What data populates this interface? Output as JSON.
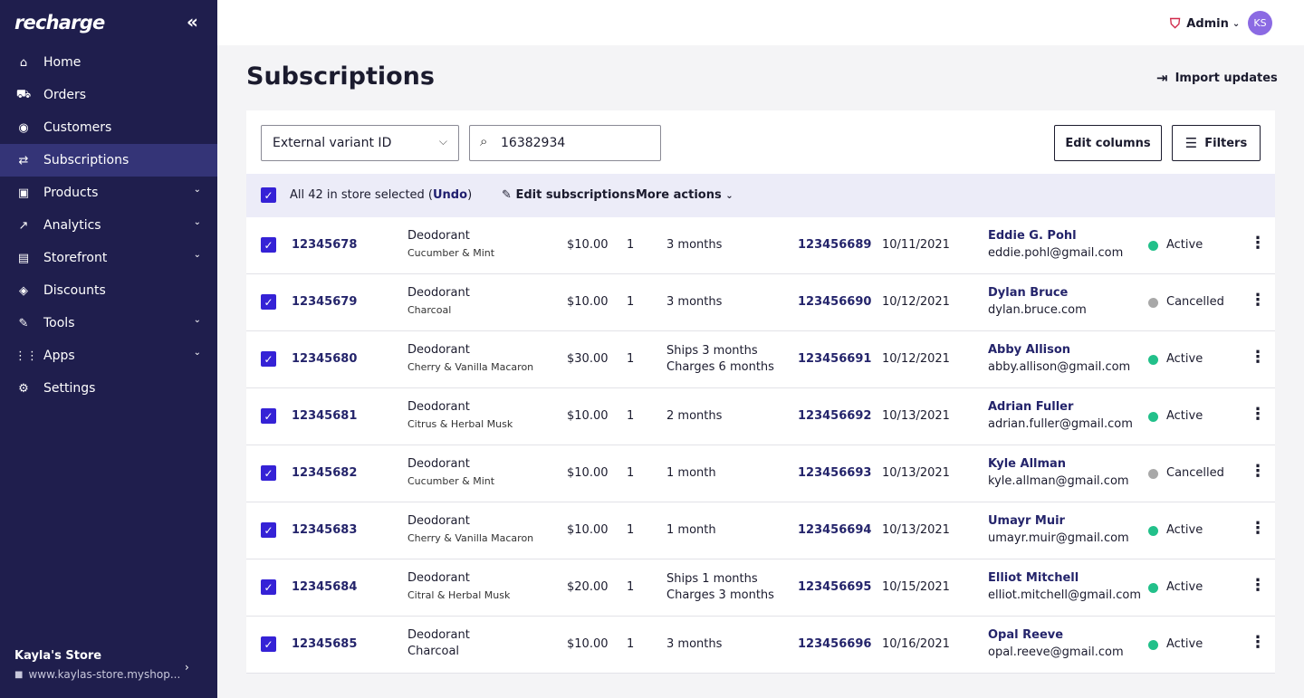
{
  "sidebar": {
    "logo": "recharge",
    "collapse_icon": "double-chevron-left-icon",
    "items": [
      {
        "label": "Home",
        "icon": "home-icon",
        "glyph": "⌂",
        "active": false,
        "chevron": false
      },
      {
        "label": "Orders",
        "icon": "cart-icon",
        "glyph": "⛟",
        "active": false,
        "chevron": false
      },
      {
        "label": "Customers",
        "icon": "user-icon",
        "glyph": "◉",
        "active": false,
        "chevron": false
      },
      {
        "label": "Subscriptions",
        "icon": "repeat-icon",
        "glyph": "⇄",
        "active": true,
        "chevron": false
      },
      {
        "label": "Products",
        "icon": "box-icon",
        "glyph": "▣",
        "active": false,
        "chevron": true
      },
      {
        "label": "Analytics",
        "icon": "trend-icon",
        "glyph": "↗",
        "active": false,
        "chevron": true
      },
      {
        "label": "Storefront",
        "icon": "store-icon",
        "glyph": "▤",
        "active": false,
        "chevron": true
      },
      {
        "label": "Discounts",
        "icon": "tag-icon",
        "glyph": "◈",
        "active": false,
        "chevron": false
      },
      {
        "label": "Tools",
        "icon": "wrench-icon",
        "glyph": "✎",
        "active": false,
        "chevron": true
      },
      {
        "label": "Apps",
        "icon": "grid-icon",
        "glyph": "⋮⋮",
        "active": false,
        "chevron": true
      },
      {
        "label": "Settings",
        "icon": "gear-icon",
        "glyph": "⚙",
        "active": false,
        "chevron": false
      }
    ],
    "store_name": "Kayla's Store",
    "store_url": "www.kaylas-store.myshop..."
  },
  "topbar": {
    "role": "Admin",
    "avatar_initials": "KS"
  },
  "page": {
    "title": "Subscriptions",
    "import_label": "Import updates"
  },
  "toolbar": {
    "filter_field": "External variant ID",
    "search_value": "16382934",
    "edit_columns_label": "Edit columns",
    "filters_label": "Filters"
  },
  "bulk": {
    "selected_text": "All 42 in store selected (",
    "undo_label": "Undo",
    "close_paren": ")",
    "edit_label": "Edit subscriptions",
    "more_label": "More actions"
  },
  "colors": {
    "sidebar": "#1f1e4d",
    "accent": "#3522d6",
    "active": "#22c08a",
    "cancelled": "#a8a8a8"
  },
  "rows": [
    {
      "id": "12345678",
      "product": "Deodorant",
      "variant": "Cucumber & Mint",
      "price": "$10.00",
      "qty": "1",
      "freq1": "3 months",
      "freq2": "",
      "customer_id": "123456689",
      "date": "10/11/2021",
      "name": "Eddie G. Pohl",
      "email": "eddie.pohl@gmail.com",
      "status": "Active"
    },
    {
      "id": "12345679",
      "product": "Deodorant",
      "variant": "Charcoal",
      "price": "$10.00",
      "qty": "1",
      "freq1": "3 months",
      "freq2": "",
      "customer_id": "123456690",
      "date": "10/12/2021",
      "name": "Dylan Bruce",
      "email": "dylan.bruce.com",
      "status": "Cancelled"
    },
    {
      "id": "12345680",
      "product": "Deodorant",
      "variant": "Cherry & Vanilla Macaron",
      "price": "$30.00",
      "qty": "1",
      "freq1": "Ships 3 months",
      "freq2": "Charges 6 months",
      "customer_id": "123456691",
      "date": "10/12/2021",
      "name": "Abby Allison",
      "email": "abby.allison@gmail.com",
      "status": "Active"
    },
    {
      "id": "12345681",
      "product": "Deodorant",
      "variant": "Citrus & Herbal Musk",
      "price": "$10.00",
      "qty": "1",
      "freq1": "2 months",
      "freq2": "",
      "customer_id": "123456692",
      "date": "10/13/2021",
      "name": "Adrian Fuller",
      "email": "adrian.fuller@gmail.com",
      "status": "Active"
    },
    {
      "id": "12345682",
      "product": "Deodorant",
      "variant": "Cucumber & Mint",
      "price": "$10.00",
      "qty": "1",
      "freq1": "1 month",
      "freq2": "",
      "customer_id": "123456693",
      "date": "10/13/2021",
      "name": "Kyle Allman",
      "email": "kyle.allman@gmail.com",
      "status": "Cancelled"
    },
    {
      "id": "12345683",
      "product": "Deodorant",
      "variant": "Cherry & Vanilla Macaron",
      "price": "$10.00",
      "qty": "1",
      "freq1": "1 month",
      "freq2": "",
      "customer_id": "123456694",
      "date": "10/13/2021",
      "name": "Umayr Muir",
      "email": "umayr.muir@gmail.com",
      "status": "Active"
    },
    {
      "id": "12345684",
      "product": "Deodorant",
      "variant": "Citral & Herbal Musk",
      "price": "$20.00",
      "qty": "1",
      "freq1": "Ships 1 months",
      "freq2": "Charges 3 months",
      "customer_id": "123456695",
      "date": "10/15/2021",
      "name": "Elliot Mitchell",
      "email": "elliot.mitchell@gmail.com",
      "status": "Active"
    },
    {
      "id": "12345685",
      "product": "Deodorant",
      "variant": "Charcoal",
      "price": "$10.00",
      "qty": "1",
      "freq1": "3 months",
      "freq2": "",
      "customer_id": "123456696",
      "date": "10/16/2021",
      "name": "Opal Reeve",
      "email": "opal.reeve@gmail.com",
      "status": "Active",
      "variant_large": true
    }
  ]
}
